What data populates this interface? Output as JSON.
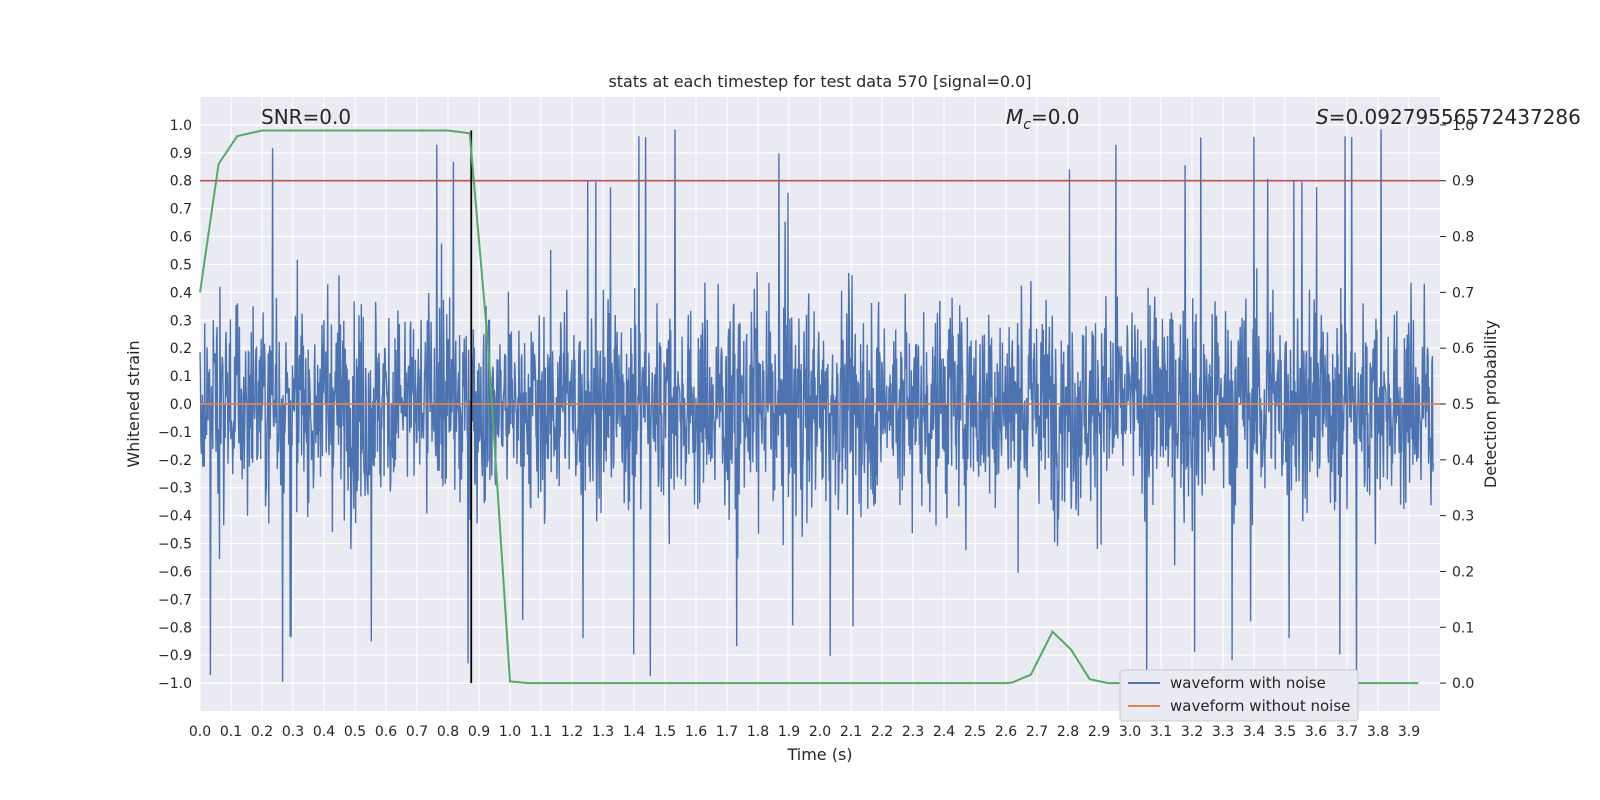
{
  "chart_data": {
    "type": "line",
    "title": "stats at each timestep for test data 570 [signal=0.0]",
    "xlabel": "Time (s)",
    "ylabel": "Whitened strain",
    "y2label": "Detection probability",
    "xlim": [
      0.0,
      4.0
    ],
    "ylim": [
      -1.1,
      1.1
    ],
    "y2lim": [
      -0.05,
      1.05
    ],
    "x_ticks": [
      "0.0",
      "0.1",
      "0.2",
      "0.3",
      "0.4",
      "0.5",
      "0.6",
      "0.7",
      "0.8",
      "0.9",
      "1.0",
      "1.1",
      "1.2",
      "1.3",
      "1.4",
      "1.5",
      "1.6",
      "1.7",
      "1.8",
      "1.9",
      "2.0",
      "2.1",
      "2.2",
      "2.3",
      "2.4",
      "2.5",
      "2.6",
      "2.7",
      "2.8",
      "2.9",
      "3.0",
      "3.1",
      "3.2",
      "3.3",
      "3.4",
      "3.5",
      "3.6",
      "3.7",
      "3.8",
      "3.9"
    ],
    "y_ticks": [
      "1.0",
      "0.9",
      "0.8",
      "0.7",
      "0.6",
      "0.5",
      "0.4",
      "0.3",
      "0.2",
      "0.1",
      "0.0",
      "-0.1",
      "-0.2",
      "-0.3",
      "-0.4",
      "-0.5",
      "-0.6",
      "-0.7",
      "-0.8",
      "-0.9",
      "-1.0"
    ],
    "y2_ticks": [
      "1.0",
      "0.9",
      "0.8",
      "0.7",
      "0.6",
      "0.5",
      "0.4",
      "0.3",
      "0.2",
      "0.1",
      "0.0"
    ],
    "annotations": {
      "snr": "SNR=0.0",
      "mc_symbol": "M",
      "mc_sub": "c",
      "mc_value": "=0.0",
      "s_symbol": "S",
      "s_value": "=0.0927955657243728​6"
    },
    "threshold": {
      "value": 0.9,
      "axis": "right",
      "color": "#c44e52"
    },
    "marker_line": {
      "x": 0.875,
      "color": "#000000"
    },
    "series": [
      {
        "name": "waveform with noise",
        "color": "#4c72b0",
        "note": "whitened noise, amplitude mostly within ±0.6 with spikes near ±1.0"
      },
      {
        "name": "waveform without noise",
        "color": "#dd8452",
        "values_constant": 0.0
      },
      {
        "name": "detection probability",
        "color": "#55a868",
        "axis": "right",
        "x": [
          0.0,
          0.06,
          0.12,
          0.2,
          0.3,
          0.4,
          0.5,
          0.6,
          0.7,
          0.8,
          0.87,
          0.93,
          1.0,
          1.06,
          1.2,
          1.5,
          1.8,
          2.1,
          2.4,
          2.6,
          2.62,
          2.68,
          2.75,
          2.81,
          2.87,
          2.93,
          3.0,
          3.3,
          3.6,
          3.93
        ],
        "values": [
          0.7,
          0.93,
          0.98,
          0.99,
          0.99,
          0.99,
          0.99,
          0.99,
          0.99,
          0.99,
          0.985,
          0.6,
          0.003,
          0.0,
          0.0,
          0.0,
          0.0,
          0.0,
          0.0,
          0.0,
          0.001,
          0.015,
          0.092,
          0.06,
          0.007,
          0.0,
          0.0,
          0.0,
          0.0,
          0.0
        ]
      }
    ],
    "legend": {
      "placement": "lower-right",
      "items": [
        "waveform with noise",
        "waveform without noise"
      ]
    }
  }
}
